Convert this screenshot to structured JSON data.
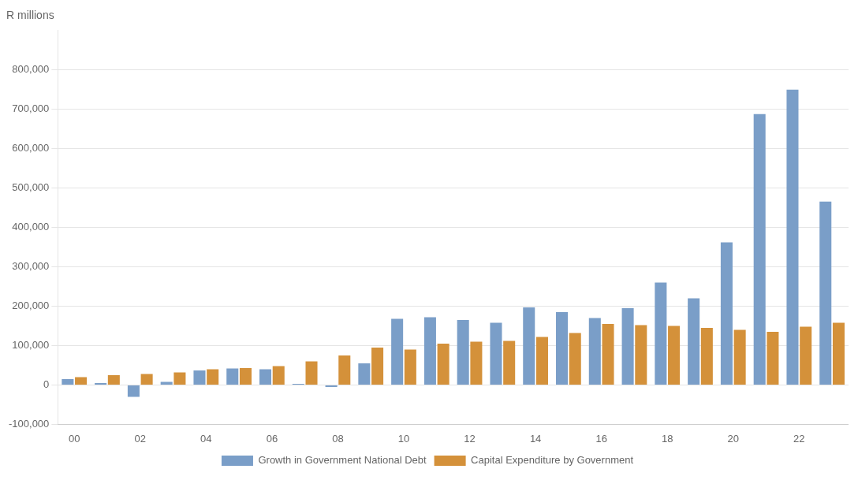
{
  "chart_data": {
    "type": "bar",
    "ylabel": "R millions",
    "categories": [
      "00",
      null,
      "02",
      null,
      "04",
      null,
      "06",
      null,
      "08",
      null,
      "10",
      null,
      "12",
      null,
      "14",
      null,
      "16",
      null,
      "18",
      null,
      "20",
      null,
      "22",
      null
    ],
    "series": [
      {
        "name": "Growth in Government National Debt",
        "color": "#7a9ec8",
        "values": [
          15000,
          5000,
          -30000,
          8000,
          37000,
          42000,
          40000,
          3000,
          -5000,
          55000,
          168000,
          172000,
          165000,
          158000,
          197000,
          185000,
          170000,
          195000,
          260000,
          220000,
          362000,
          688000,
          750000,
          466000
        ]
      },
      {
        "name": "Capital Expenditure by Government",
        "color": "#d4913a",
        "values": [
          20000,
          25000,
          28000,
          32000,
          40000,
          43000,
          48000,
          60000,
          75000,
          95000,
          90000,
          105000,
          110000,
          112000,
          122000,
          132000,
          155000,
          152000,
          150000,
          145000,
          140000,
          135000,
          148000,
          158000
        ]
      }
    ],
    "ylim": [
      -100000,
      900000
    ],
    "yticks": [
      {
        "value": -100000,
        "label": "-100,000"
      },
      0,
      {
        "value": 100000,
        "label": "100,000"
      },
      {
        "value": 200000,
        "label": "200,000"
      },
      {
        "value": 300000,
        "label": "300,000"
      },
      {
        "value": 400000,
        "label": "400,000"
      },
      {
        "value": 500000,
        "label": "500,000"
      },
      {
        "value": 600000,
        "label": "600,000"
      },
      {
        "value": 700000,
        "label": "700,000"
      },
      {
        "value": 800000,
        "label": "800,000"
      }
    ],
    "grid": true,
    "legend": "bottom"
  }
}
